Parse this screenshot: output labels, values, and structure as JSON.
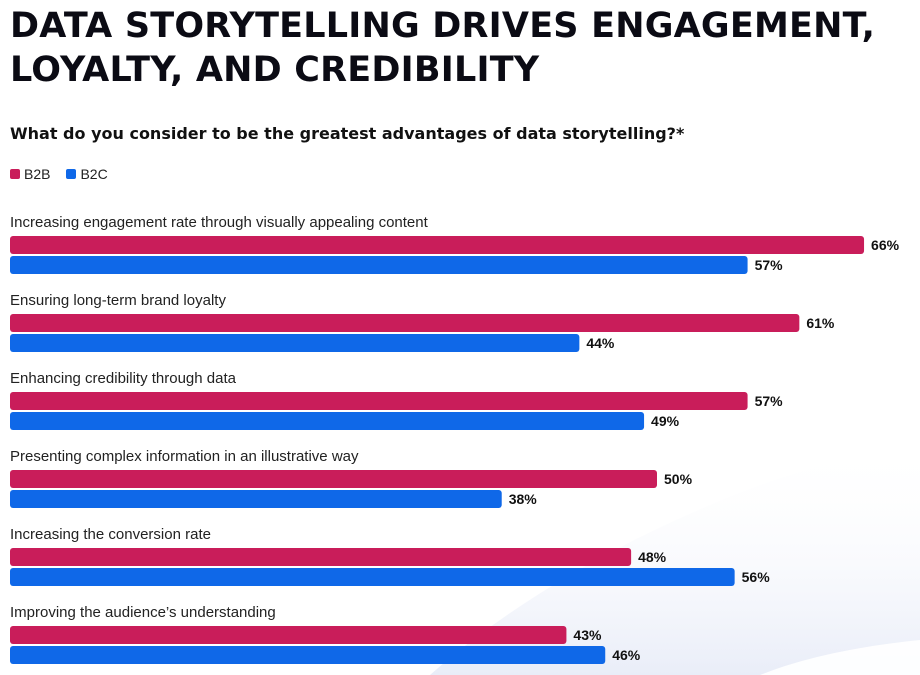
{
  "title_lines": [
    "DATA STORYTELLING DRIVES ENGAGEMENT,",
    "LOYALTY, AND CREDIBILITY"
  ],
  "subtitle": "What do you consider to be the greatest advantages of data storytelling?*",
  "colors": {
    "b2b": "#c91d5a",
    "b2c": "#0f68e8",
    "swoosh": "#e9edf8"
  },
  "chart_data": {
    "type": "bar",
    "orientation": "horizontal",
    "categories": [
      "Increasing engagement rate through visually appealing content",
      "Ensuring long-term brand loyalty",
      "Enhancing credibility through data",
      "Presenting complex information in an illustrative way",
      "Increasing the conversion rate",
      "Improving the audience’s understanding"
    ],
    "series": [
      {
        "name": "B2B",
        "values": [
          66,
          61,
          57,
          50,
          48,
          43
        ],
        "labels": [
          "66%",
          "61%",
          "57%",
          "50%",
          "48%",
          "43%"
        ]
      },
      {
        "name": "B2C",
        "values": [
          57,
          44,
          49,
          38,
          56,
          46
        ],
        "labels": [
          "57%",
          "44%",
          "49%",
          "38%",
          "56%",
          "46%"
        ]
      }
    ],
    "value_unit": "%",
    "legend": "top-left",
    "grid": false
  }
}
